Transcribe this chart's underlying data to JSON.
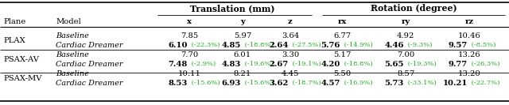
{
  "title_translation": "Translation (mm)",
  "title_rotation": "Rotation (degree)",
  "col_headers": [
    "x",
    "y",
    "z",
    "rx",
    "ry",
    "rz"
  ],
  "row_groups": [
    {
      "plane": "PLAX",
      "rows": [
        {
          "model": "Baseline",
          "values": [
            "7.85",
            "5.97",
            "3.64",
            "6.77",
            "4.92",
            "10.46"
          ],
          "pcts": [
            null,
            null,
            null,
            null,
            null,
            null
          ],
          "bold": false
        },
        {
          "model": "Cardiac Dreamer",
          "values": [
            "6.10",
            "4.85",
            "2.64",
            "5.76",
            "4.46",
            "9.57"
          ],
          "pcts": [
            "-22.3%",
            "-18.8%",
            "-27.5%",
            "-14.9%",
            "-9.3%",
            "-8.5%"
          ],
          "bold": true
        }
      ]
    },
    {
      "plane": "PSAX-AV",
      "rows": [
        {
          "model": "Baseline",
          "values": [
            "7.70",
            "6.01",
            "3.30",
            "5.17",
            "7.00",
            "13.26"
          ],
          "pcts": [
            null,
            null,
            null,
            null,
            null,
            null
          ],
          "bold": false
        },
        {
          "model": "Cardiac Dreamer",
          "values": [
            "7.48",
            "4.83",
            "2.67",
            "4.20",
            "5.65",
            "9.77"
          ],
          "pcts": [
            "-2.9%",
            "-19.6%",
            "-19.1%",
            "-18.8%",
            "-19.3%",
            "-26.3%"
          ],
          "bold": true
        }
      ]
    },
    {
      "plane": "PSAX-MV",
      "rows": [
        {
          "model": "Baseline",
          "values": [
            "10.11",
            "8.21",
            "4.45",
            "5.50",
            "8.57",
            "13.20"
          ],
          "pcts": [
            null,
            null,
            null,
            null,
            null,
            null
          ],
          "bold": false
        },
        {
          "model": "Cardiac Dreamer",
          "values": [
            "8.53",
            "6.93",
            "3.62",
            "4.57",
            "5.73",
            "10.21"
          ],
          "pcts": [
            "-15.6%",
            "-15.6%",
            "-18.7%",
            "-16.9%",
            "-33.1%",
            "-22.7%"
          ],
          "bold": true
        }
      ]
    }
  ],
  "pct_color": "#22aa22",
  "font_size": 7.2,
  "header_font_size": 7.8,
  "figsize": [
    6.4,
    1.33
  ],
  "dpi": 100
}
